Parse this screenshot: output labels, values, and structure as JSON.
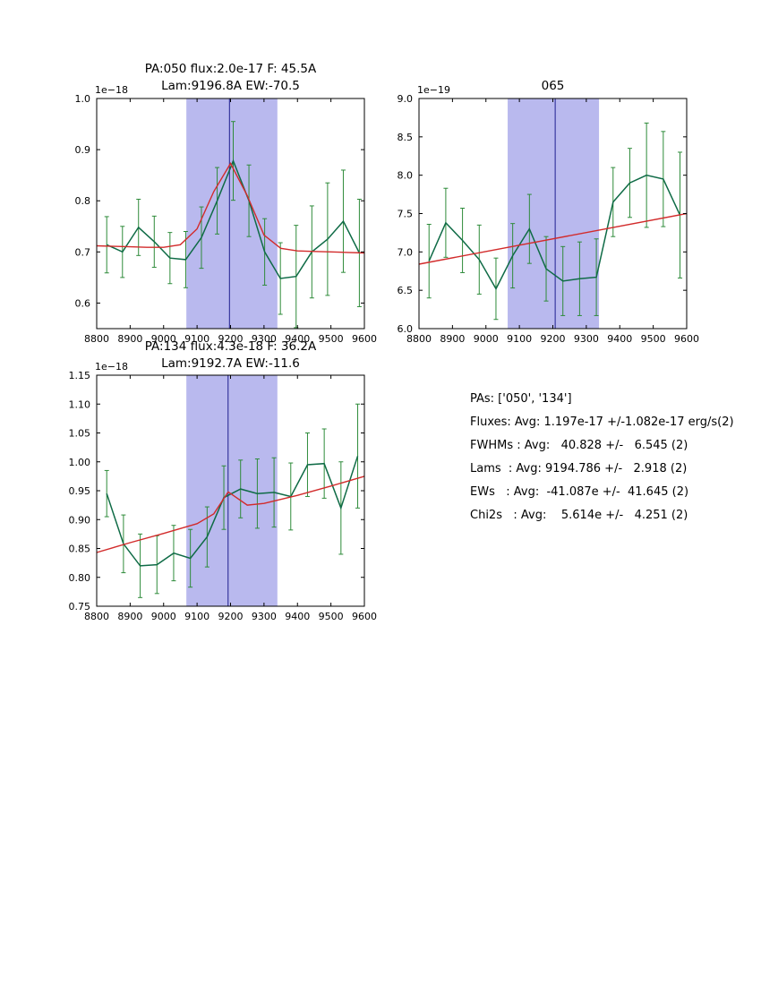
{
  "colors": {
    "band": "#b9b9ee",
    "vline": "#1f1f8f",
    "errbar": "#2e8b3a",
    "data_line": "#0f6b46",
    "fit_line": "#d22b2b",
    "axis": "#000000",
    "background": "#ffffff"
  },
  "summary": {
    "lines": [
      "PAs: ['050', '134']",
      "Fluxes: Avg: 1.197e-17 +/-1.082e-17 erg/s(2)",
      "FWHMs : Avg:   40.828 +/-   6.545 (2)",
      "Lams  : Avg: 9194.786 +/-   2.918 (2)",
      "EWs   : Avg:  -41.087e +/-  41.645 (2)",
      "Chi2s   : Avg:    5.614e +/-   4.251 (2)"
    ]
  },
  "chart_data": [
    {
      "type": "line",
      "title": [
        "PA:050 flux:2.0e-17 F: 45.5A",
        "Lam:9196.8A EW:-70.5"
      ],
      "offset_label": "1e−18",
      "xlim": [
        8800,
        9600
      ],
      "ylim": [
        0.55,
        1.0
      ],
      "xticks": [
        8800,
        8900,
        9000,
        9100,
        9200,
        9300,
        9400,
        9500,
        9600
      ],
      "xtick_labels": [
        "8800",
        "8900",
        "9000",
        "9100",
        "9200",
        "9300",
        "9400",
        "9500",
        "9600"
      ],
      "yticks": [
        0.6,
        0.7,
        0.8,
        0.9,
        1.0
      ],
      "ytick_labels": [
        "0.6",
        "0.7",
        "0.8",
        "0.9",
        "1.0"
      ],
      "band": [
        9068,
        9340
      ],
      "vline": 9196.8,
      "series": {
        "x": [
          8830,
          8877,
          8925,
          8972,
          9019,
          9066,
          9113,
          9160,
          9208,
          9255,
          9302,
          9349,
          9396,
          9443,
          9490,
          9537,
          9585
        ],
        "y": [
          0.714,
          0.7,
          0.748,
          0.72,
          0.688,
          0.685,
          0.728,
          0.8,
          0.878,
          0.8,
          0.7,
          0.648,
          0.652,
          0.7,
          0.725,
          0.76,
          0.698
        ],
        "yerr": [
          0.055,
          0.05,
          0.055,
          0.05,
          0.05,
          0.055,
          0.06,
          0.065,
          0.077,
          0.07,
          0.065,
          0.07,
          0.1,
          0.09,
          0.11,
          0.1,
          0.105
        ]
      },
      "fit": {
        "x": [
          8800,
          8850,
          8900,
          8950,
          9000,
          9050,
          9100,
          9150,
          9200,
          9250,
          9300,
          9350,
          9400,
          9450,
          9500,
          9550,
          9600
        ],
        "y": [
          0.712,
          0.711,
          0.71,
          0.709,
          0.709,
          0.714,
          0.745,
          0.818,
          0.873,
          0.81,
          0.733,
          0.707,
          0.702,
          0.701,
          0.7,
          0.699,
          0.698
        ]
      }
    },
    {
      "type": "line",
      "title": [
        "065"
      ],
      "offset_label": "1e−19",
      "xlim": [
        8800,
        9600
      ],
      "ylim": [
        6.0,
        9.0
      ],
      "xticks": [
        8800,
        8900,
        9000,
        9100,
        9200,
        9300,
        9400,
        9500,
        9600
      ],
      "xtick_labels": [
        "8800",
        "8900",
        "9000",
        "9100",
        "9200",
        "9300",
        "9400",
        "9500",
        "9600"
      ],
      "yticks": [
        6.0,
        6.5,
        7.0,
        7.5,
        8.0,
        8.5,
        9.0
      ],
      "ytick_labels": [
        "6.0",
        "6.5",
        "7.0",
        "7.5",
        "8.0",
        "8.5",
        "9.0"
      ],
      "band": [
        9065,
        9338
      ],
      "vline": 9207,
      "series": {
        "x": [
          8830,
          8880,
          8930,
          8980,
          9030,
          9080,
          9130,
          9180,
          9230,
          9280,
          9330,
          9380,
          9430,
          9480,
          9530,
          9580
        ],
        "y": [
          6.88,
          7.38,
          7.15,
          6.9,
          6.52,
          6.95,
          7.3,
          6.78,
          6.62,
          6.65,
          6.67,
          7.65,
          7.9,
          8.0,
          7.95,
          7.48
        ],
        "yerr": [
          0.48,
          0.45,
          0.42,
          0.45,
          0.4,
          0.42,
          0.45,
          0.42,
          0.45,
          0.48,
          0.5,
          0.45,
          0.45,
          0.68,
          0.62,
          0.82
        ]
      },
      "fit": {
        "x": [
          8800,
          9600
        ],
        "y": [
          6.84,
          7.5
        ]
      }
    },
    {
      "type": "line",
      "title": [
        "PA:134 flux:4.3e-18 F: 36.2A",
        "Lam:9192.7A EW:-11.6"
      ],
      "offset_label": "1e−18",
      "xlim": [
        8800,
        9600
      ],
      "ylim": [
        0.75,
        1.15
      ],
      "xticks": [
        8800,
        8900,
        9000,
        9100,
        9200,
        9300,
        9400,
        9500,
        9600
      ],
      "xtick_labels": [
        "8800",
        "8900",
        "9000",
        "9100",
        "9200",
        "9300",
        "9400",
        "9500",
        "9600"
      ],
      "yticks": [
        0.75,
        0.8,
        0.85,
        0.9,
        0.95,
        1.0,
        1.05,
        1.1,
        1.15
      ],
      "ytick_labels": [
        "0.75",
        "0.80",
        "0.85",
        "0.90",
        "0.95",
        "1.00",
        "1.05",
        "1.10",
        "1.15"
      ],
      "band": [
        9068,
        9340
      ],
      "vline": 9192.7,
      "series": {
        "x": [
          8830,
          8880,
          8930,
          8980,
          9030,
          9080,
          9130,
          9180,
          9230,
          9280,
          9330,
          9380,
          9430,
          9480,
          9530,
          9580
        ],
        "y": [
          0.945,
          0.858,
          0.82,
          0.822,
          0.842,
          0.833,
          0.87,
          0.938,
          0.953,
          0.945,
          0.947,
          0.94,
          0.995,
          0.997,
          0.92,
          1.01
        ],
        "yerr": [
          0.04,
          0.05,
          0.055,
          0.05,
          0.048,
          0.05,
          0.052,
          0.055,
          0.05,
          0.06,
          0.06,
          0.058,
          0.055,
          0.06,
          0.08,
          0.09
        ]
      },
      "fit": {
        "x": [
          8800,
          8900,
          9000,
          9100,
          9150,
          9193,
          9250,
          9300,
          9400,
          9500,
          9600
        ],
        "y": [
          0.843,
          0.86,
          0.876,
          0.893,
          0.91,
          0.948,
          0.925,
          0.928,
          0.942,
          0.958,
          0.975
        ]
      }
    }
  ]
}
